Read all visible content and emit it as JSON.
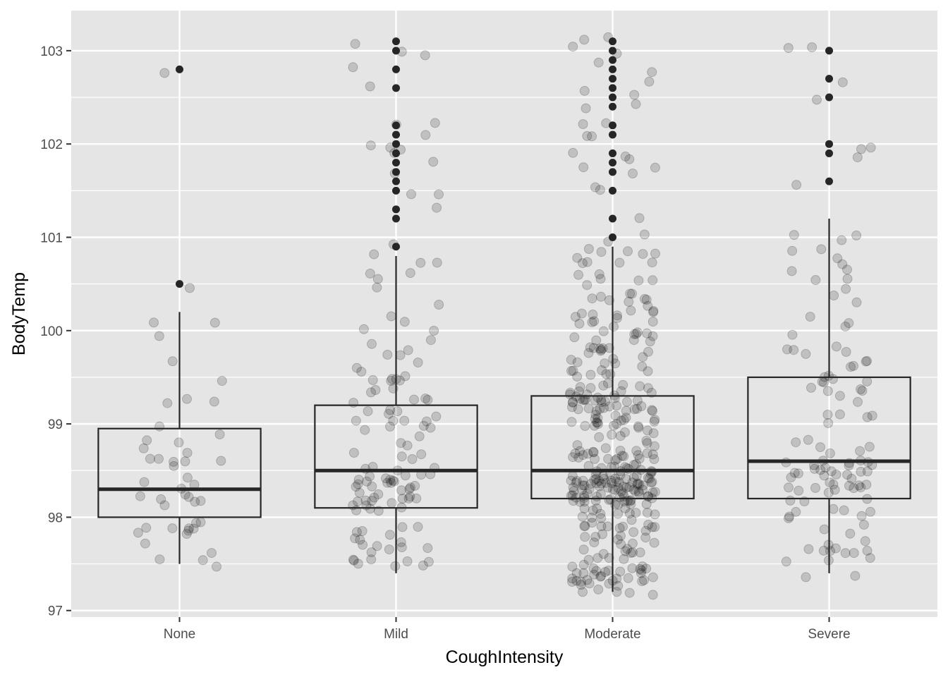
{
  "chart_data": {
    "type": "boxplot",
    "title": "",
    "xlabel": "CoughIntensity",
    "ylabel": "BodyTemp",
    "ylim": [
      96.93,
      103.43
    ],
    "y_ticks": [
      97,
      98,
      99,
      100,
      101,
      102,
      103
    ],
    "y_tick_labels": [
      "97",
      "98",
      "99",
      "100",
      "101",
      "102",
      "103"
    ],
    "grid": true,
    "legend": "none",
    "colors": {
      "panel_background": "#e5e5e5",
      "grid": "#ffffff",
      "box": "#262626",
      "points": "#000000"
    },
    "categories": [
      "None",
      "Mild",
      "Moderate",
      "Severe"
    ],
    "boxes": [
      {
        "category": "None",
        "whisker_low": 97.5,
        "q1": 98.0,
        "median": 98.3,
        "q3": 98.95,
        "whisker_high": 100.2,
        "outliers": [
          102.8,
          100.5
        ]
      },
      {
        "category": "Mild",
        "whisker_low": 97.4,
        "q1": 98.1,
        "median": 98.5,
        "q3": 99.2,
        "whisker_high": 100.8,
        "outliers": [
          103.1,
          103.0,
          102.8,
          102.6,
          102.2,
          102.1,
          102.0,
          101.9,
          101.8,
          101.7,
          101.6,
          101.5,
          101.3,
          101.2,
          100.9
        ]
      },
      {
        "category": "Moderate",
        "whisker_low": 97.2,
        "q1": 98.2,
        "median": 98.5,
        "q3": 99.3,
        "whisker_high": 100.9,
        "outliers": [
          103.1,
          103.0,
          102.9,
          102.8,
          102.7,
          102.6,
          102.5,
          102.4,
          102.2,
          102.1,
          101.9,
          101.8,
          101.7,
          101.5,
          101.2,
          101.0
        ]
      },
      {
        "category": "Severe",
        "whisker_low": 97.4,
        "q1": 98.2,
        "median": 98.6,
        "q3": 99.5,
        "whisker_high": 101.2,
        "outliers": [
          103.0,
          102.7,
          102.5,
          102.0,
          101.9,
          101.6
        ]
      }
    ],
    "jitter_counts": [
      45,
      115,
      350,
      110
    ]
  }
}
